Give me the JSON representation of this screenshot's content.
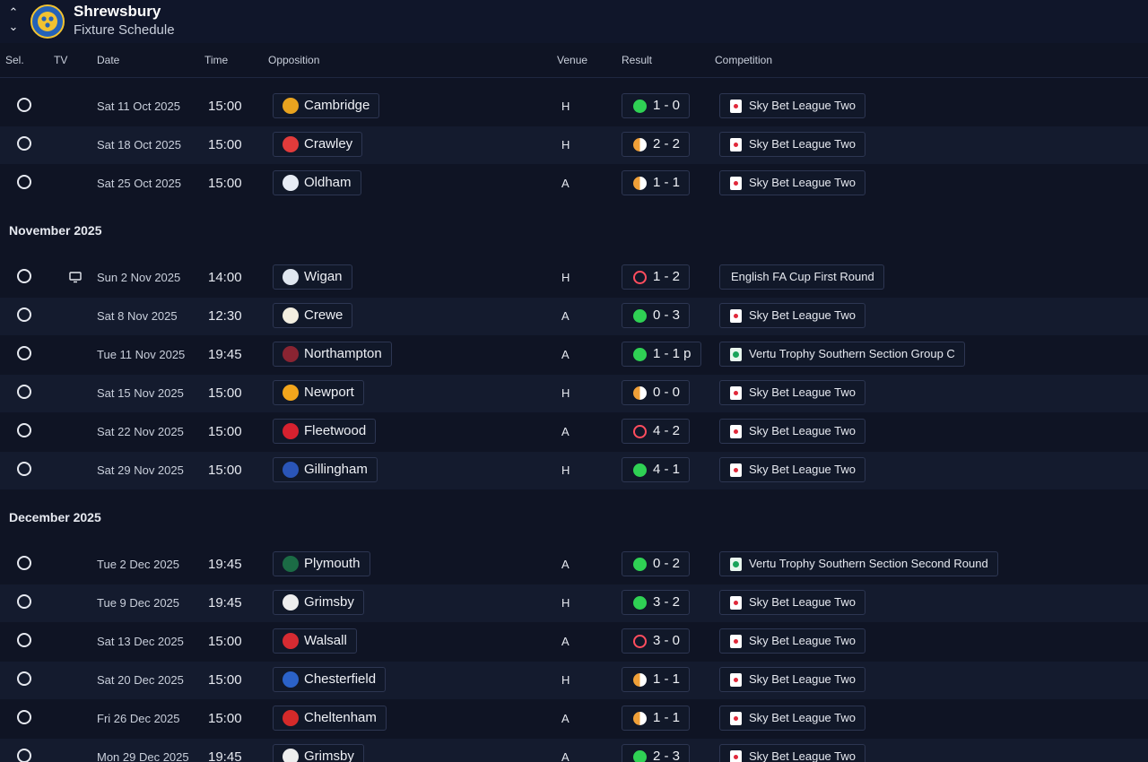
{
  "header": {
    "club": "Shrewsbury",
    "subtitle": "Fixture Schedule",
    "badge_color": "#2462b8",
    "badge_accent": "#f2c230"
  },
  "columns": {
    "sel": "Sel.",
    "tv": "TV",
    "date": "Date",
    "time": "Time",
    "opposition": "Opposition",
    "venue": "Venue",
    "result": "Result",
    "competition": "Competition"
  },
  "colors": {
    "win": "#2fd154",
    "draw": "#f0a038",
    "loss": "#ff4d5e"
  },
  "items": [
    {
      "date": "Sat 11 Oct 2025",
      "time": "15:00",
      "opposition": "Cambridge",
      "crest": "#e8a31f",
      "venue": "H",
      "score": "1 - 0",
      "outcome": "win",
      "competition": "Sky Bet League Two",
      "comp_icon": "league"
    },
    {
      "date": "Sat 18 Oct 2025",
      "time": "15:00",
      "opposition": "Crawley",
      "crest": "#e23b3b",
      "venue": "H",
      "score": "2 - 2",
      "outcome": "draw",
      "competition": "Sky Bet League Two",
      "comp_icon": "league"
    },
    {
      "date": "Sat 25 Oct 2025",
      "time": "15:00",
      "opposition": "Oldham",
      "crest": "#e7ecf5",
      "venue": "A",
      "score": "1 - 1",
      "outcome": "draw",
      "competition": "Sky Bet League Two",
      "comp_icon": "league"
    },
    {
      "month": "November 2025"
    },
    {
      "date": "Sun 2 Nov 2025",
      "time": "14:00",
      "opposition": "Wigan",
      "crest": "#dfe6ef",
      "venue": "H",
      "score": "1 - 2",
      "outcome": "loss",
      "competition": "English FA Cup First Round",
      "comp_icon": "none",
      "tv": true
    },
    {
      "date": "Sat 8 Nov 2025",
      "time": "12:30",
      "opposition": "Crewe",
      "crest": "#f3eee0",
      "venue": "A",
      "score": "0 - 3",
      "outcome": "win",
      "competition": "Sky Bet League Two",
      "comp_icon": "league"
    },
    {
      "date": "Tue 11 Nov 2025",
      "time": "19:45",
      "opposition": "Northampton",
      "crest": "#8a2432",
      "venue": "A",
      "score": "1 - 1 p",
      "outcome": "win",
      "competition": "Vertu Trophy Southern Section Group C",
      "comp_icon": "trophy"
    },
    {
      "date": "Sat 15 Nov 2025",
      "time": "15:00",
      "opposition": "Newport",
      "crest": "#f2a51c",
      "venue": "H",
      "score": "0 - 0",
      "outcome": "draw",
      "competition": "Sky Bet League Two",
      "comp_icon": "league"
    },
    {
      "date": "Sat 22 Nov 2025",
      "time": "15:00",
      "opposition": "Fleetwood",
      "crest": "#d6212f",
      "venue": "A",
      "score": "4 - 2",
      "outcome": "loss",
      "competition": "Sky Bet League Two",
      "comp_icon": "league"
    },
    {
      "date": "Sat 29 Nov 2025",
      "time": "15:00",
      "opposition": "Gillingham",
      "crest": "#2a55b8",
      "venue": "H",
      "score": "4 - 1",
      "outcome": "win",
      "competition": "Sky Bet League Two",
      "comp_icon": "league"
    },
    {
      "month": "December 2025"
    },
    {
      "date": "Tue 2 Dec 2025",
      "time": "19:45",
      "opposition": "Plymouth",
      "crest": "#1b6b45",
      "venue": "A",
      "score": "0 - 2",
      "outcome": "win",
      "competition": "Vertu Trophy Southern Section Second Round",
      "comp_icon": "trophy"
    },
    {
      "date": "Tue 9 Dec 2025",
      "time": "19:45",
      "opposition": "Grimsby",
      "crest": "#eeeeee",
      "venue": "H",
      "score": "3 - 2",
      "outcome": "win",
      "competition": "Sky Bet League Two",
      "comp_icon": "league"
    },
    {
      "date": "Sat 13 Dec 2025",
      "time": "15:00",
      "opposition": "Walsall",
      "crest": "#d62b32",
      "venue": "A",
      "score": "3 - 0",
      "outcome": "loss",
      "competition": "Sky Bet League Two",
      "comp_icon": "league"
    },
    {
      "date": "Sat 20 Dec 2025",
      "time": "15:00",
      "opposition": "Chesterfield",
      "crest": "#2b62c8",
      "venue": "H",
      "score": "1 - 1",
      "outcome": "draw",
      "competition": "Sky Bet League Two",
      "comp_icon": "league"
    },
    {
      "date": "Fri 26 Dec 2025",
      "time": "15:00",
      "opposition": "Cheltenham",
      "crest": "#d52a2a",
      "venue": "A",
      "score": "1 - 1",
      "outcome": "draw",
      "competition": "Sky Bet League Two",
      "comp_icon": "league"
    },
    {
      "date": "Mon 29 Dec 2025",
      "time": "19:45",
      "opposition": "Grimsby",
      "crest": "#eeeeee",
      "venue": "A",
      "score": "2 - 3",
      "outcome": "win",
      "competition": "Sky Bet League Two",
      "comp_icon": "league"
    }
  ]
}
